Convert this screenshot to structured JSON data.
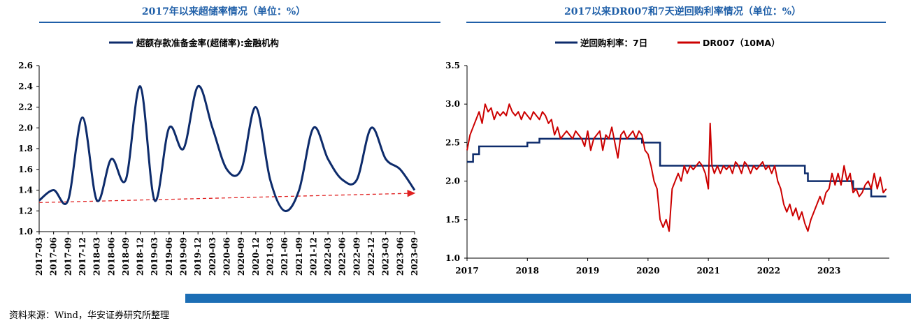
{
  "left": {
    "title": "2017年以来超储率情况（单位：%）",
    "chart_data": {
      "type": "line",
      "title": "2017年以来超储率情况（单位：%）",
      "series": [
        {
          "name": "超额存款准备金率(超储率):金融机构",
          "color": "#0d2b6b",
          "values": [
            1.3,
            1.4,
            1.3,
            2.1,
            1.3,
            1.7,
            1.5,
            2.4,
            1.3,
            2.0,
            1.8,
            2.4,
            2.0,
            1.6,
            1.6,
            2.2,
            1.5,
            1.2,
            1.4,
            2.0,
            1.7,
            1.5,
            1.5,
            2.0,
            1.7,
            1.6,
            1.4
          ]
        }
      ],
      "categories": [
        "2017-03",
        "2017-06",
        "2017-09",
        "2017-12",
        "2018-03",
        "2018-06",
        "2018-09",
        "2018-12",
        "2019-03",
        "2019-06",
        "2019-09",
        "2019-12",
        "2020-03",
        "2020-06",
        "2020-09",
        "2020-12",
        "2021-03",
        "2021-06",
        "2021-09",
        "2021-12",
        "2022-03",
        "2022-06",
        "2022-09",
        "2022-12",
        "2023-03",
        "2023-06",
        "2023-09"
      ],
      "yticks": [
        "1.0",
        "1.2",
        "1.4",
        "1.6",
        "1.8",
        "2.0",
        "2.2",
        "2.4",
        "2.6"
      ],
      "ylim": [
        1.0,
        2.6
      ],
      "trendline": {
        "color": "#e02020",
        "start": 1.28,
        "end": 1.37,
        "style": "dashed-arrow"
      },
      "legend_position": "top",
      "grid": false
    }
  },
  "right": {
    "title": "2017以来DR007和7天逆回购利率情况（单位：%）",
    "chart_data": {
      "type": "line",
      "title": "2017以来DR007和7天逆回购利率情况（单位：%）",
      "xticks": [
        "2017",
        "2018",
        "2019",
        "2020",
        "2021",
        "2022",
        "2023"
      ],
      "yticks": [
        "1.0",
        "1.5",
        "2.0",
        "2.5",
        "3.0",
        "3.5"
      ],
      "ylim": [
        1.0,
        3.5
      ],
      "xlim": [
        2017.0,
        2024.0
      ],
      "legend_position": "top",
      "grid": false,
      "series": [
        {
          "name": "逆回购利率：7日",
          "color": "#0d2b6b",
          "type": "step",
          "points": [
            [
              2017.0,
              2.25
            ],
            [
              2017.1,
              2.35
            ],
            [
              2017.2,
              2.45
            ],
            [
              2018.0,
              2.5
            ],
            [
              2018.2,
              2.55
            ],
            [
              2019.0,
              2.55
            ],
            [
              2019.9,
              2.5
            ],
            [
              2020.2,
              2.2
            ],
            [
              2022.6,
              2.1
            ],
            [
              2022.65,
              2.0
            ],
            [
              2023.4,
              1.9
            ],
            [
              2023.7,
              1.8
            ],
            [
              2023.95,
              1.8
            ]
          ]
        },
        {
          "name": "DR007（10MA）",
          "color": "#cc0000",
          "type": "line",
          "points": [
            [
              2017.0,
              2.4
            ],
            [
              2017.05,
              2.6
            ],
            [
              2017.1,
              2.7
            ],
            [
              2017.15,
              2.8
            ],
            [
              2017.2,
              2.9
            ],
            [
              2017.25,
              2.75
            ],
            [
              2017.3,
              3.0
            ],
            [
              2017.35,
              2.9
            ],
            [
              2017.4,
              2.95
            ],
            [
              2017.45,
              2.8
            ],
            [
              2017.5,
              2.9
            ],
            [
              2017.55,
              2.85
            ],
            [
              2017.6,
              2.9
            ],
            [
              2017.65,
              2.85
            ],
            [
              2017.7,
              3.0
            ],
            [
              2017.75,
              2.9
            ],
            [
              2017.8,
              2.85
            ],
            [
              2017.85,
              2.9
            ],
            [
              2017.9,
              2.8
            ],
            [
              2017.95,
              2.9
            ],
            [
              2018.0,
              2.85
            ],
            [
              2018.05,
              2.8
            ],
            [
              2018.1,
              2.9
            ],
            [
              2018.15,
              2.85
            ],
            [
              2018.2,
              2.8
            ],
            [
              2018.25,
              2.9
            ],
            [
              2018.3,
              2.85
            ],
            [
              2018.35,
              2.75
            ],
            [
              2018.4,
              2.8
            ],
            [
              2018.45,
              2.6
            ],
            [
              2018.5,
              2.7
            ],
            [
              2018.55,
              2.55
            ],
            [
              2018.6,
              2.6
            ],
            [
              2018.65,
              2.65
            ],
            [
              2018.7,
              2.6
            ],
            [
              2018.75,
              2.55
            ],
            [
              2018.8,
              2.65
            ],
            [
              2018.85,
              2.6
            ],
            [
              2018.9,
              2.55
            ],
            [
              2018.95,
              2.45
            ],
            [
              2019.0,
              2.65
            ],
            [
              2019.05,
              2.4
            ],
            [
              2019.1,
              2.55
            ],
            [
              2019.15,
              2.6
            ],
            [
              2019.2,
              2.65
            ],
            [
              2019.25,
              2.4
            ],
            [
              2019.3,
              2.6
            ],
            [
              2019.35,
              2.55
            ],
            [
              2019.4,
              2.7
            ],
            [
              2019.45,
              2.5
            ],
            [
              2019.5,
              2.3
            ],
            [
              2019.55,
              2.6
            ],
            [
              2019.6,
              2.65
            ],
            [
              2019.65,
              2.55
            ],
            [
              2019.7,
              2.6
            ],
            [
              2019.75,
              2.65
            ],
            [
              2019.8,
              2.55
            ],
            [
              2019.85,
              2.65
            ],
            [
              2019.9,
              2.6
            ],
            [
              2019.95,
              2.4
            ],
            [
              2020.0,
              2.35
            ],
            [
              2020.05,
              2.2
            ],
            [
              2020.1,
              2.0
            ],
            [
              2020.15,
              1.9
            ],
            [
              2020.2,
              1.5
            ],
            [
              2020.25,
              1.4
            ],
            [
              2020.3,
              1.5
            ],
            [
              2020.35,
              1.35
            ],
            [
              2020.4,
              1.9
            ],
            [
              2020.45,
              2.0
            ],
            [
              2020.5,
              2.1
            ],
            [
              2020.55,
              2.0
            ],
            [
              2020.6,
              2.2
            ],
            [
              2020.65,
              2.1
            ],
            [
              2020.7,
              2.2
            ],
            [
              2020.75,
              2.15
            ],
            [
              2020.8,
              2.2
            ],
            [
              2020.85,
              2.25
            ],
            [
              2020.9,
              2.2
            ],
            [
              2020.95,
              2.1
            ],
            [
              2021.0,
              1.9
            ],
            [
              2021.03,
              2.75
            ],
            [
              2021.06,
              2.2
            ],
            [
              2021.1,
              2.1
            ],
            [
              2021.15,
              2.2
            ],
            [
              2021.2,
              2.1
            ],
            [
              2021.25,
              2.2
            ],
            [
              2021.3,
              2.15
            ],
            [
              2021.35,
              2.2
            ],
            [
              2021.4,
              2.1
            ],
            [
              2021.45,
              2.25
            ],
            [
              2021.5,
              2.2
            ],
            [
              2021.55,
              2.1
            ],
            [
              2021.6,
              2.25
            ],
            [
              2021.65,
              2.2
            ],
            [
              2021.7,
              2.1
            ],
            [
              2021.75,
              2.2
            ],
            [
              2021.8,
              2.15
            ],
            [
              2021.85,
              2.2
            ],
            [
              2021.9,
              2.25
            ],
            [
              2021.95,
              2.15
            ],
            [
              2022.0,
              2.2
            ],
            [
              2022.05,
              2.1
            ],
            [
              2022.1,
              2.2
            ],
            [
              2022.15,
              2.0
            ],
            [
              2022.2,
              1.9
            ],
            [
              2022.25,
              1.7
            ],
            [
              2022.3,
              1.6
            ],
            [
              2022.35,
              1.7
            ],
            [
              2022.4,
              1.55
            ],
            [
              2022.45,
              1.65
            ],
            [
              2022.5,
              1.5
            ],
            [
              2022.55,
              1.6
            ],
            [
              2022.6,
              1.45
            ],
            [
              2022.65,
              1.35
            ],
            [
              2022.7,
              1.5
            ],
            [
              2022.75,
              1.6
            ],
            [
              2022.8,
              1.7
            ],
            [
              2022.85,
              1.8
            ],
            [
              2022.9,
              1.7
            ],
            [
              2022.95,
              1.85
            ],
            [
              2023.0,
              1.9
            ],
            [
              2023.05,
              2.1
            ],
            [
              2023.1,
              1.95
            ],
            [
              2023.15,
              2.1
            ],
            [
              2023.2,
              1.95
            ],
            [
              2023.25,
              2.2
            ],
            [
              2023.3,
              2.0
            ],
            [
              2023.35,
              2.1
            ],
            [
              2023.4,
              1.85
            ],
            [
              2023.45,
              1.9
            ],
            [
              2023.5,
              1.8
            ],
            [
              2023.55,
              1.85
            ],
            [
              2023.6,
              1.95
            ],
            [
              2023.65,
              2.0
            ],
            [
              2023.7,
              1.9
            ],
            [
              2023.75,
              2.1
            ],
            [
              2023.8,
              1.9
            ],
            [
              2023.85,
              2.05
            ],
            [
              2023.9,
              1.85
            ],
            [
              2023.95,
              1.9
            ]
          ]
        }
      ]
    }
  },
  "source": "资料来源：Wind，华安证券研究所整理",
  "colors": {
    "title_blue": "#1f5fa8",
    "bar_blue": "#1c6eb5"
  }
}
